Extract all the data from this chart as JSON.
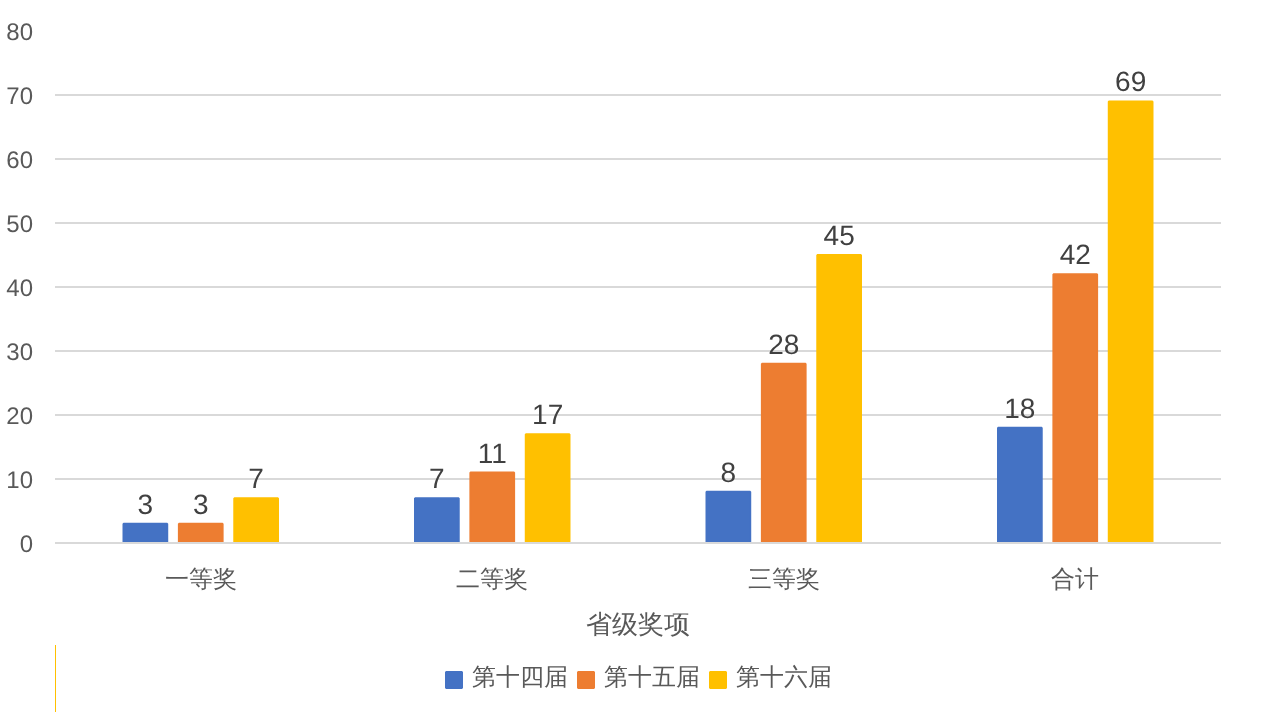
{
  "chart_data": {
    "type": "bar",
    "xlabel": "省级奖项",
    "categories": [
      "一等奖",
      "二等奖",
      "三等奖",
      "合计"
    ],
    "series": [
      {
        "name": "第十四届",
        "color": "#4472c4",
        "values": [
          3,
          7,
          8,
          18
        ]
      },
      {
        "name": "第十五届",
        "color": "#ed7d31",
        "values": [
          3,
          11,
          28,
          42
        ]
      },
      {
        "name": "第十六届",
        "color": "#ffc000",
        "values": [
          7,
          17,
          45,
          69
        ]
      }
    ],
    "ylim": [
      0,
      80
    ],
    "yticks": [
      0,
      10,
      20,
      30,
      40,
      50,
      60,
      70,
      80
    ],
    "grid": "y",
    "legend": "bottom",
    "data_labels": true
  }
}
